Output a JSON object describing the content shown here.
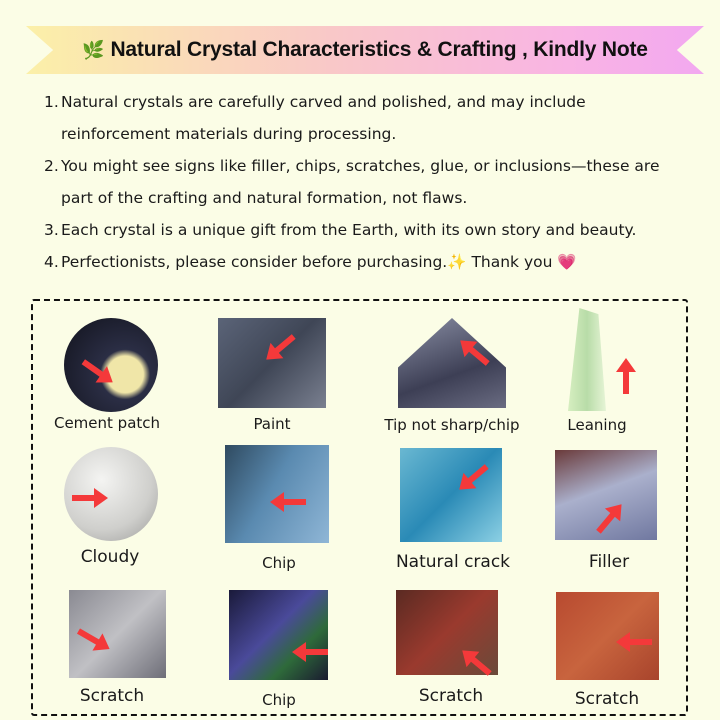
{
  "banner": {
    "icon": "herb-leaf-icon",
    "title": "Natural Crystal Characteristics & Crafting , Kindly Note"
  },
  "notes": [
    {
      "num": "1.",
      "text": "Natural crystals are carefully carved and polished, and may include reinforcement materials during processing."
    },
    {
      "num": "2.",
      "text": "You might see signs like filler, chips, scratches, glue, or inclusions—these are part of the crafting and natural formation, not flaws."
    },
    {
      "num": "3.",
      "text": "Each crystal is a unique gift from the Earth, with its own story and beauty."
    },
    {
      "num": "4.",
      "text": "Perfectionists, please consider before purchasing.✨  Thank you 💗"
    }
  ],
  "examples": [
    {
      "label": "Cement patch"
    },
    {
      "label": "Paint"
    },
    {
      "label": "Tip not sharp/chip"
    },
    {
      "label": "Leaning"
    },
    {
      "label": "Cloudy"
    },
    {
      "label": "Chip"
    },
    {
      "label": "Natural crack"
    },
    {
      "label": "Filler"
    },
    {
      "label": "Scratch"
    },
    {
      "label": "Chip"
    },
    {
      "label": "Scratch"
    },
    {
      "label": "Scratch"
    }
  ],
  "colors": {
    "arrow": "#f4393a",
    "background": "#fbfde6"
  }
}
